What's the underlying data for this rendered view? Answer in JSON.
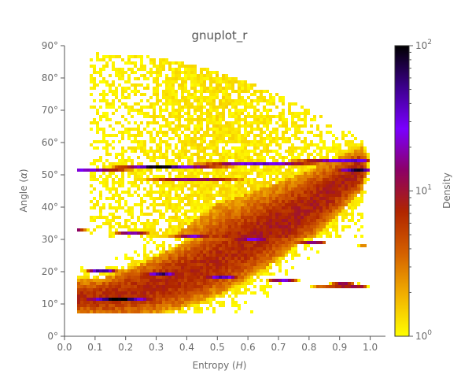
{
  "chart_data": {
    "type": "heatmap",
    "title": "gnuplot_r",
    "xlabel_prefix": "Entropy (",
    "xlabel_symbol": "H",
    "xlabel_suffix": ")",
    "ylabel_prefix": "Angle (",
    "ylabel_symbol": "α",
    "ylabel_suffix": ")",
    "xlim": [
      0.0,
      1.05
    ],
    "ylim": [
      0,
      90
    ],
    "x_ticks": [
      0.0,
      0.1,
      0.2,
      0.3,
      0.4,
      0.5,
      0.6,
      0.7,
      0.8,
      0.9,
      1.0
    ],
    "x_tick_labels": [
      "0.0",
      "0.1",
      "0.2",
      "0.3",
      "0.4",
      "0.5",
      "0.6",
      "0.7",
      "0.8",
      "0.9",
      "1.0"
    ],
    "y_ticks": [
      0,
      10,
      20,
      30,
      40,
      50,
      60,
      70,
      80,
      90
    ],
    "y_tick_labels": [
      "0°",
      "10°",
      "20°",
      "30°",
      "40°",
      "50°",
      "60°",
      "70°",
      "80°",
      "90°"
    ],
    "colorbar": {
      "label": "Density",
      "scale": "log",
      "range": [
        1,
        100
      ],
      "ticks": [
        {
          "value": 1,
          "base": "10",
          "exp": "0"
        },
        {
          "value": 10,
          "base": "10",
          "exp": "1"
        },
        {
          "value": 100,
          "base": "10",
          "exp": "2"
        }
      ],
      "colormap": "gnuplot_r",
      "stops": [
        "#ffff00",
        "#f2b000",
        "#d46000",
        "#b02500",
        "#8c0066",
        "#7a00ff",
        "#3c008c",
        "#000000"
      ]
    },
    "grid": false,
    "density_regions": [
      {
        "x": 0.12,
        "y": 11,
        "level": 100
      },
      {
        "x": 0.17,
        "y": 20,
        "level": 60
      },
      {
        "x": 0.21,
        "y": 32,
        "level": 25
      },
      {
        "x": 0.82,
        "y": 54,
        "level": 40
      },
      {
        "x": 0.95,
        "y": 52,
        "level": 100
      },
      {
        "x": 0.5,
        "y": 48,
        "level": 3
      },
      {
        "x": 0.4,
        "y": 72,
        "level": 1
      }
    ]
  }
}
